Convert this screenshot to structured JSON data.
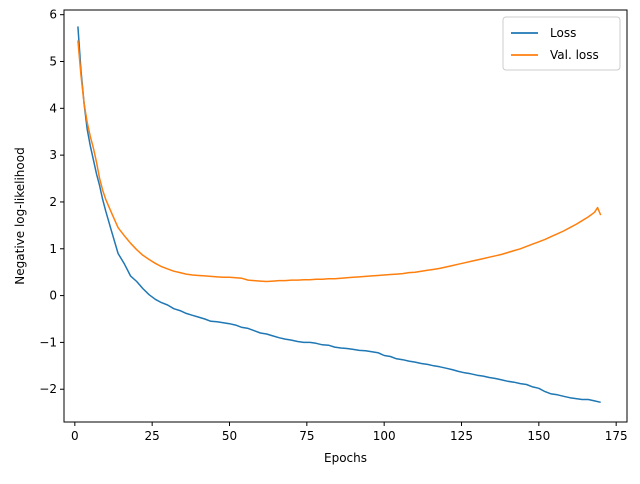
{
  "chart_data": {
    "type": "line",
    "xlabel": "Epochs",
    "ylabel": "Negative log-likelihood",
    "xlim": [
      -3.5,
      178.5
    ],
    "ylim": [
      -2.7,
      6.1
    ],
    "xticks": [
      0,
      25,
      50,
      75,
      100,
      125,
      150,
      175
    ],
    "xtick_labels": [
      "0",
      "25",
      "50",
      "75",
      "100",
      "125",
      "150",
      "175"
    ],
    "yticks": [
      -2,
      -1,
      0,
      1,
      2,
      3,
      4,
      5,
      6
    ],
    "ytick_labels": [
      "−2",
      "−1",
      "0",
      "1",
      "2",
      "3",
      "4",
      "5",
      "6"
    ],
    "legend_position": "top-right",
    "grid": false,
    "series": [
      {
        "name": "Loss",
        "color": "#1f77b4",
        "x": [
          1,
          2,
          3,
          4,
          5,
          6,
          7,
          8,
          9,
          10,
          12,
          14,
          16,
          18,
          20,
          22,
          24,
          26,
          28,
          30,
          32,
          34,
          36,
          38,
          40,
          42,
          44,
          46,
          48,
          50,
          52,
          54,
          56,
          58,
          60,
          62,
          64,
          66,
          68,
          70,
          72,
          74,
          76,
          78,
          80,
          82,
          84,
          86,
          88,
          90,
          92,
          94,
          96,
          98,
          100,
          102,
          104,
          106,
          108,
          110,
          112,
          114,
          116,
          118,
          120,
          122,
          124,
          126,
          128,
          130,
          132,
          134,
          136,
          138,
          140,
          142,
          144,
          146,
          148,
          150,
          152,
          154,
          156,
          158,
          160,
          162,
          164,
          166,
          168,
          170
        ],
        "y": [
          5.75,
          4.8,
          4.1,
          3.55,
          3.2,
          2.9,
          2.6,
          2.35,
          2.05,
          1.8,
          1.35,
          0.9,
          0.68,
          0.42,
          0.3,
          0.15,
          0.02,
          -0.08,
          -0.15,
          -0.2,
          -0.28,
          -0.32,
          -0.38,
          -0.42,
          -0.46,
          -0.5,
          -0.55,
          -0.56,
          -0.58,
          -0.6,
          -0.63,
          -0.68,
          -0.7,
          -0.75,
          -0.8,
          -0.82,
          -0.86,
          -0.9,
          -0.93,
          -0.95,
          -0.98,
          -1.0,
          -1.0,
          -1.02,
          -1.05,
          -1.06,
          -1.1,
          -1.12,
          -1.13,
          -1.15,
          -1.17,
          -1.18,
          -1.2,
          -1.22,
          -1.28,
          -1.3,
          -1.35,
          -1.37,
          -1.4,
          -1.42,
          -1.45,
          -1.47,
          -1.5,
          -1.52,
          -1.55,
          -1.58,
          -1.62,
          -1.65,
          -1.67,
          -1.7,
          -1.72,
          -1.75,
          -1.77,
          -1.8,
          -1.83,
          -1.85,
          -1.88,
          -1.9,
          -1.95,
          -1.98,
          -2.05,
          -2.1,
          -2.12,
          -2.15,
          -2.18,
          -2.2,
          -2.22,
          -2.22,
          -2.25,
          -2.28
        ]
      },
      {
        "name": "Val. loss",
        "color": "#ff7f0e",
        "x": [
          1,
          2,
          3,
          4,
          5,
          6,
          7,
          8,
          9,
          10,
          12,
          14,
          16,
          18,
          20,
          22,
          24,
          26,
          28,
          30,
          32,
          34,
          36,
          38,
          40,
          42,
          44,
          46,
          48,
          50,
          52,
          54,
          56,
          58,
          60,
          62,
          64,
          66,
          68,
          70,
          72,
          74,
          76,
          78,
          80,
          82,
          84,
          86,
          88,
          90,
          92,
          94,
          96,
          98,
          100,
          102,
          104,
          106,
          108,
          110,
          112,
          114,
          116,
          118,
          120,
          122,
          124,
          126,
          128,
          130,
          132,
          134,
          136,
          138,
          140,
          142,
          144,
          146,
          148,
          150,
          152,
          154,
          156,
          158,
          160,
          162,
          164,
          166,
          168,
          169,
          170
        ],
        "y": [
          5.45,
          4.7,
          4.1,
          3.7,
          3.4,
          3.15,
          2.85,
          2.5,
          2.25,
          2.05,
          1.75,
          1.45,
          1.28,
          1.12,
          0.98,
          0.86,
          0.77,
          0.69,
          0.62,
          0.57,
          0.52,
          0.49,
          0.46,
          0.44,
          0.43,
          0.42,
          0.41,
          0.4,
          0.39,
          0.39,
          0.38,
          0.37,
          0.33,
          0.32,
          0.31,
          0.3,
          0.31,
          0.32,
          0.32,
          0.33,
          0.33,
          0.34,
          0.34,
          0.35,
          0.35,
          0.36,
          0.36,
          0.37,
          0.38,
          0.39,
          0.4,
          0.41,
          0.42,
          0.43,
          0.44,
          0.45,
          0.46,
          0.47,
          0.49,
          0.5,
          0.52,
          0.54,
          0.56,
          0.58,
          0.61,
          0.64,
          0.67,
          0.7,
          0.73,
          0.76,
          0.79,
          0.82,
          0.85,
          0.88,
          0.92,
          0.96,
          1.0,
          1.05,
          1.1,
          1.15,
          1.2,
          1.26,
          1.32,
          1.38,
          1.45,
          1.52,
          1.6,
          1.68,
          1.78,
          1.88,
          1.72
        ]
      }
    ]
  }
}
